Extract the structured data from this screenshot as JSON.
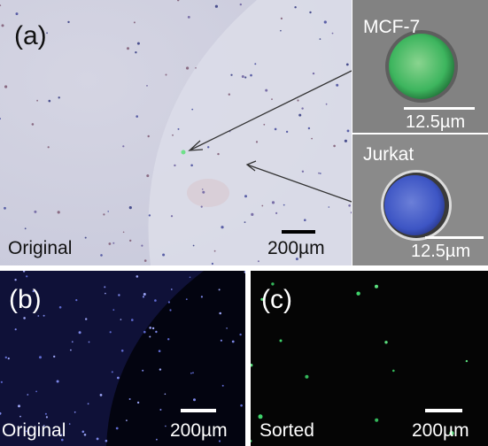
{
  "panel_a": {
    "letter": "(a)",
    "caption": "Original",
    "scale_label": "200µm",
    "inset_top": {
      "name": "MCF-7",
      "scale_label": "12.5µm",
      "cell_color": "#4fc36a"
    },
    "inset_bottom": {
      "name": "Jurkat",
      "scale_label": "12.5µm",
      "cell_color": "#4058c8"
    }
  },
  "panel_b": {
    "letter": "(b)",
    "caption": "Original",
    "scale_label": "200µm"
  },
  "panel_c": {
    "letter": "(c)",
    "caption": "Sorted",
    "scale_label": "200µm"
  }
}
